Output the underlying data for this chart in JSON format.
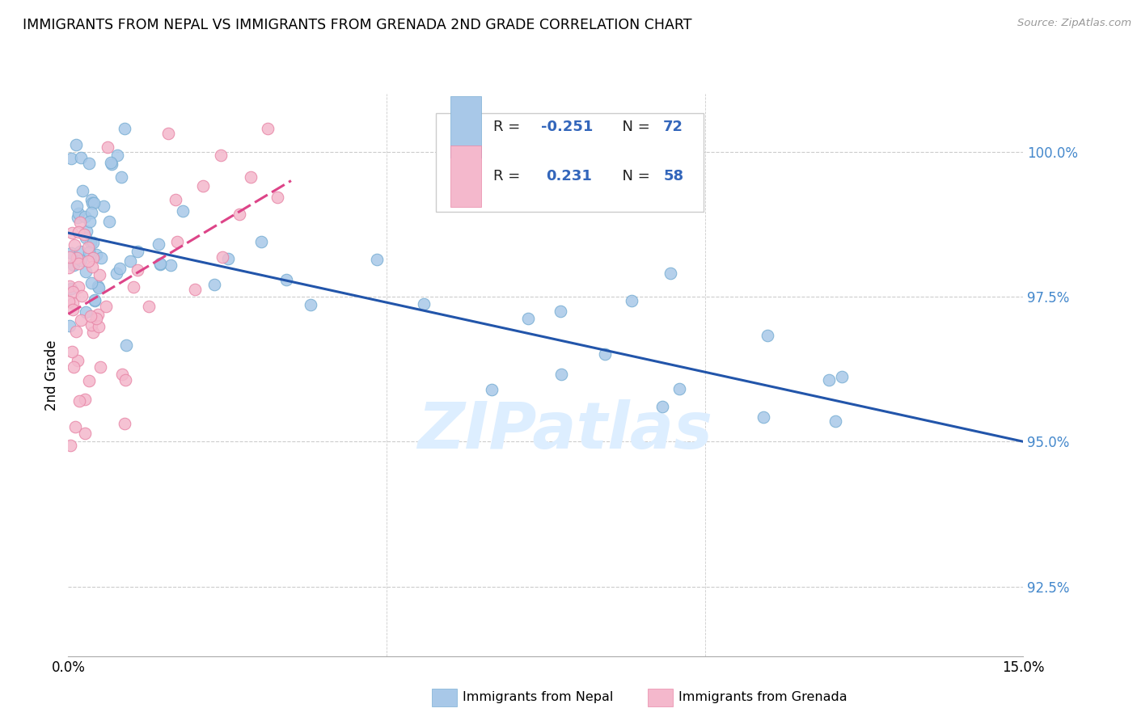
{
  "title": "IMMIGRANTS FROM NEPAL VS IMMIGRANTS FROM GRENADA 2ND GRADE CORRELATION CHART",
  "source": "Source: ZipAtlas.com",
  "ylabel": "2nd Grade",
  "ylabel_right_ticks": [
    "92.5%",
    "95.0%",
    "97.5%",
    "100.0%"
  ],
  "ylabel_right_vals": [
    92.5,
    95.0,
    97.5,
    100.0
  ],
  "xmin": 0.0,
  "xmax": 15.0,
  "ymin": 91.3,
  "ymax": 101.0,
  "legend_blue_label": "Immigrants from Nepal",
  "legend_pink_label": "Immigrants from Grenada",
  "R_blue": -0.251,
  "N_blue": 72,
  "R_pink": 0.231,
  "N_pink": 58,
  "blue_color": "#a8c8e8",
  "blue_edge_color": "#7aafd4",
  "pink_color": "#f4b8cc",
  "pink_edge_color": "#e888a8",
  "trend_blue_color": "#2255aa",
  "trend_pink_color": "#dd4488",
  "watermark_color": "#ddeeff",
  "trend_blue_x0": 0.0,
  "trend_blue_y0": 98.6,
  "trend_blue_x1": 15.0,
  "trend_blue_y1": 95.0,
  "trend_pink_x0": 0.0,
  "trend_pink_y0": 97.2,
  "trend_pink_x1": 3.5,
  "trend_pink_y1": 99.5
}
